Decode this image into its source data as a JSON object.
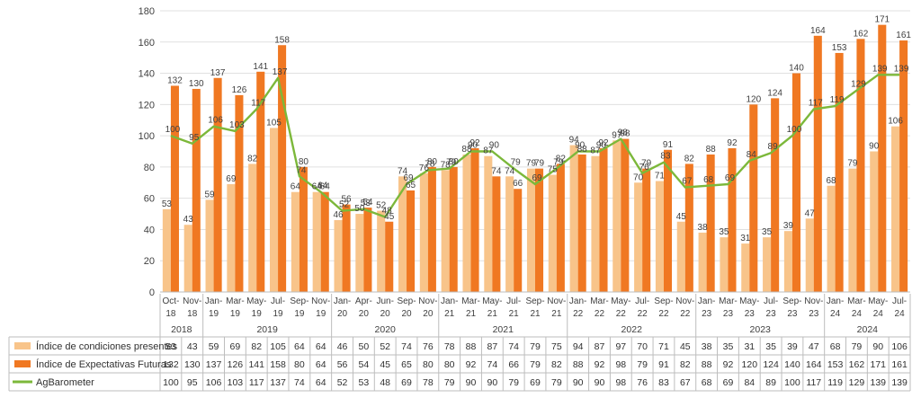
{
  "chart_data": {
    "type": "bar",
    "y_axis": {
      "ylim": [
        0,
        180
      ],
      "ticks": [
        "0",
        "20",
        "40",
        "60",
        "80",
        "100",
        "120",
        "140",
        "160",
        "180"
      ]
    },
    "grid": true,
    "categories": [
      [
        "Oct-",
        "18"
      ],
      [
        "Nov-",
        "18"
      ],
      [
        "Jan-",
        "19"
      ],
      [
        "Mar-",
        "19"
      ],
      [
        "May-",
        "19"
      ],
      [
        "Jul-",
        "19"
      ],
      [
        "Sep-",
        "19"
      ],
      [
        "Nov-",
        "19"
      ],
      [
        "Jan-",
        "20"
      ],
      [
        "Apr-",
        "20"
      ],
      [
        "Jun-",
        "20"
      ],
      [
        "Sep-",
        "20"
      ],
      [
        "Nov-",
        "20"
      ],
      [
        "Jan-",
        "21"
      ],
      [
        "Mar-",
        "21"
      ],
      [
        "May-",
        "21"
      ],
      [
        "Jul-",
        "21"
      ],
      [
        "Sep-",
        "21"
      ],
      [
        "Nov-",
        "21"
      ],
      [
        "Jan-",
        "22"
      ],
      [
        "Mar-",
        "22"
      ],
      [
        "May-",
        "22"
      ],
      [
        "Jul-",
        "22"
      ],
      [
        "Sep-",
        "22"
      ],
      [
        "Nov-",
        "22"
      ],
      [
        "Jan-",
        "23"
      ],
      [
        "Mar-",
        "23"
      ],
      [
        "May-",
        "23"
      ],
      [
        "Jul-",
        "23"
      ],
      [
        "Sep-",
        "23"
      ],
      [
        "Nov-",
        "23"
      ],
      [
        "Jan-",
        "24"
      ],
      [
        "Mar-",
        "24"
      ],
      [
        "May-",
        "24"
      ],
      [
        "Jul-",
        "24"
      ]
    ],
    "year_groups": [
      {
        "label": "2018",
        "count": 2
      },
      {
        "label": "2019",
        "count": 6
      },
      {
        "label": "2020",
        "count": 5
      },
      {
        "label": "2021",
        "count": 6
      },
      {
        "label": "2022",
        "count": 6
      },
      {
        "label": "2023",
        "count": 6
      },
      {
        "label": "2024",
        "count": 4
      }
    ],
    "series": [
      {
        "name": "Índice de condiciones presentes",
        "kind": "bar",
        "color": "#f8c48a",
        "values": [
          53,
          43,
          59,
          69,
          82,
          105,
          64,
          64,
          46,
          50,
          52,
          74,
          76,
          78,
          88,
          87,
          74,
          79,
          75,
          94,
          87,
          97,
          70,
          71,
          45,
          38,
          35,
          31,
          35,
          39,
          47,
          68,
          79,
          90,
          106
        ]
      },
      {
        "name": "Índice de Expectativas Futuras",
        "kind": "bar",
        "color": "#f07822",
        "values": [
          132,
          130,
          137,
          126,
          141,
          158,
          80,
          64,
          56,
          54,
          45,
          65,
          80,
          80,
          92,
          74,
          66,
          79,
          82,
          88,
          92,
          98,
          79,
          91,
          82,
          88,
          92,
          120,
          124,
          140,
          164,
          153,
          162,
          171,
          161
        ]
      },
      {
        "name": "AgBarometer",
        "kind": "line",
        "color": "#7cb83a",
        "values": [
          100,
          95,
          106,
          103,
          117,
          137,
          74,
          64,
          52,
          53,
          48,
          69,
          78,
          79,
          90,
          90,
          79,
          69,
          79,
          90,
          90,
          98,
          76,
          83,
          67,
          68,
          69,
          84,
          89,
          100,
          117,
          119,
          129,
          139,
          139
        ]
      }
    ]
  }
}
